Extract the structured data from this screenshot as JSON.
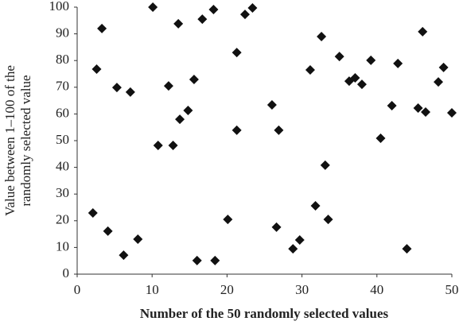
{
  "chart_data": {
    "type": "scatter",
    "xlabel": "Number of the 50 randomly selected values",
    "ylabel": [
      "Value between 1–100 of the",
      "randomly selected value"
    ],
    "color": "#111111",
    "x": [
      2.1,
      2.6,
      3.3,
      4.1,
      5.3,
      6.2,
      7.1,
      8.1,
      10.1,
      10.8,
      12.2,
      12.8,
      13.5,
      13.7,
      14.8,
      15.6,
      16.0,
      16.7,
      18.2,
      18.4,
      20.1,
      21.3,
      21.3,
      22.4,
      23.4,
      26.0,
      26.6,
      26.9,
      28.8,
      29.7,
      31.1,
      31.8,
      32.6,
      33.1,
      33.5,
      35.0,
      36.3,
      37.1,
      38.0,
      39.2,
      40.5,
      42.0,
      42.8,
      44.0,
      45.5,
      46.1,
      46.5,
      48.2,
      48.9,
      50.0
    ],
    "y": [
      22.9,
      76.8,
      92,
      16.1,
      69.9,
      7.1,
      68.2,
      13.1,
      100,
      48.2,
      70.5,
      48.2,
      93.8,
      58,
      61.3,
      72.9,
      5.1,
      95.5,
      99.1,
      5.1,
      20.5,
      83,
      53.9,
      97.3,
      99.7,
      63.4,
      17.6,
      53.9,
      9.5,
      12.8,
      76.5,
      25.6,
      89,
      40.8,
      20.5,
      81.5,
      72.3,
      73.5,
      71.1,
      80.1,
      50.9,
      63.1,
      78.9,
      9.5,
      62.2,
      90.8,
      60.7,
      72.0,
      77.4,
      60.4
    ],
    "xlim": [
      0,
      50
    ],
    "xticks": [
      0,
      10,
      20,
      30,
      40,
      50
    ],
    "ylim": [
      0,
      100
    ],
    "yticks": [
      0,
      10,
      20,
      30,
      40,
      50,
      60,
      70,
      80,
      90,
      100
    ]
  }
}
